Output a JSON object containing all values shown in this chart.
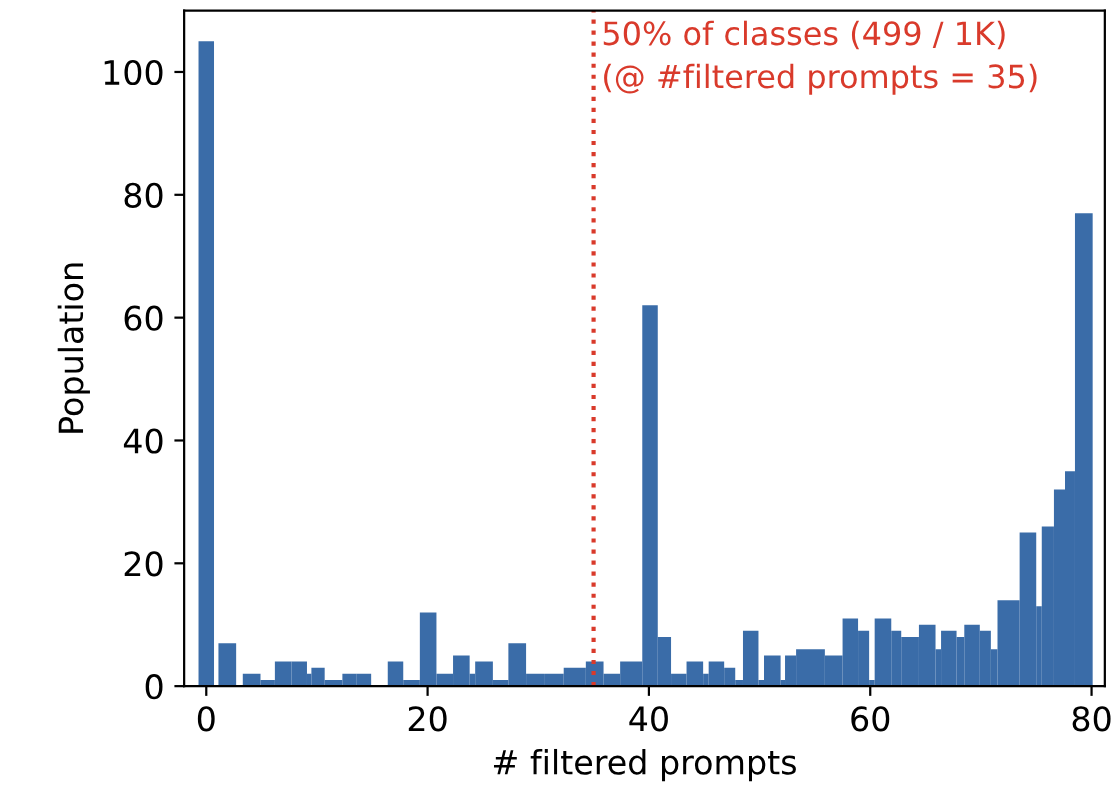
{
  "chart_data": {
    "type": "histogram",
    "xlabel": "# filtered prompts",
    "ylabel": "Population",
    "bins": [
      -0.7,
      0.7,
      1.1,
      2.7,
      3.3,
      4.9,
      6.2,
      7.7,
      9.1,
      9.5,
      10.7,
      12.3,
      13.6,
      14.9,
      16.4,
      17.8,
      19.3,
      20.8,
      22.3,
      23.8,
      24.3,
      25.9,
      27.3,
      28.9,
      30.6,
      32.3,
      34.3,
      35.9,
      37.4,
      39.4,
      40.8,
      42.0,
      43.4,
      44.9,
      45.4,
      46.8,
      47.8,
      48.5,
      49.9,
      50.4,
      51.9,
      52.3,
      53.3,
      55.9,
      57.5,
      58.9,
      59.9,
      60.4,
      61.9,
      62.8,
      64.4,
      65.9,
      66.4,
      67.8,
      68.5,
      69.9,
      70.9,
      71.5,
      73.5,
      75.0,
      75.5,
      76.6,
      77.6,
      78.5,
      80.1
    ],
    "values": [
      105,
      0,
      7,
      0,
      2,
      1,
      4,
      4,
      2,
      3,
      1,
      2,
      2,
      0,
      4,
      1,
      12,
      2,
      5,
      2,
      4,
      1,
      7,
      2,
      2,
      3,
      4,
      2,
      4,
      62,
      8,
      2,
      4,
      2,
      4,
      3,
      1,
      9,
      1,
      5,
      1,
      5,
      6,
      5,
      11,
      9,
      1,
      11,
      9,
      8,
      10,
      6,
      9,
      8,
      10,
      9,
      6,
      14,
      25,
      13,
      26,
      32,
      35,
      77
    ],
    "color": "#3a6ca8",
    "xlim": [
      -2,
      81.2
    ],
    "xticks": [
      0,
      20,
      40,
      60,
      80
    ],
    "ylim": [
      0,
      110
    ],
    "yticks": [
      0,
      20,
      40,
      60,
      80,
      100
    ],
    "grid": false,
    "legend": false,
    "ref_lines": [
      {
        "axis": "x",
        "value": 35,
        "label": "50% of classes (499 / 1K)\n(@ #filtered prompts = 35)",
        "color": "#d93a2b",
        "line_style": "dotted"
      }
    ]
  }
}
